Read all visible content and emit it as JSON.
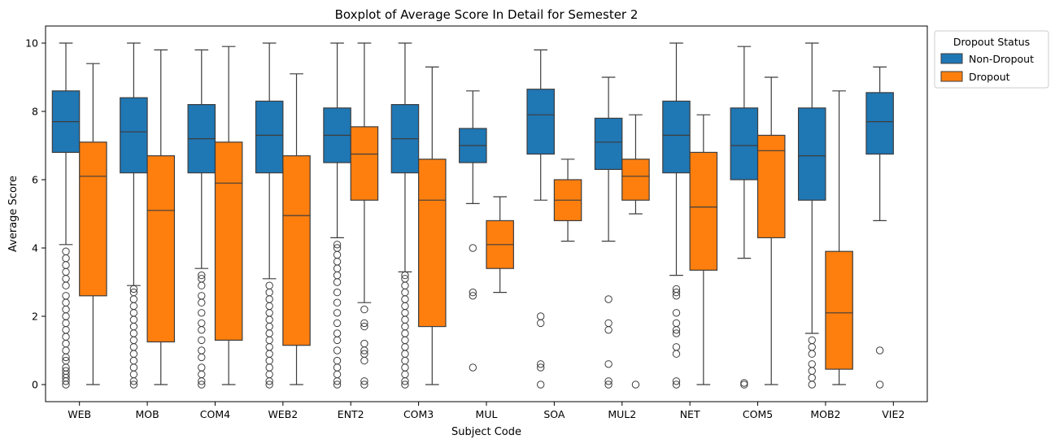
{
  "chart_data": {
    "type": "boxplot",
    "title": "Boxplot of Average Score In Detail for Semester 2",
    "xlabel": "Subject Code",
    "ylabel": "Average Score",
    "ylim": [
      -0.5,
      10.5
    ],
    "yticks": [
      0,
      2,
      4,
      6,
      8,
      10
    ],
    "grid": false,
    "legend": {
      "title": "Dropout Status",
      "placement": "upper-right-outside"
    },
    "categories": [
      "WEB",
      "MOB",
      "COM4",
      "WEB2",
      "ENT2",
      "COM3",
      "MUL",
      "SOA",
      "MUL2",
      "NET",
      "COM5",
      "MOB2",
      "VIE2"
    ],
    "series": [
      {
        "name": "Non-Dropout",
        "color": "#1f77b4",
        "boxes": [
          {
            "whislo": 4.1,
            "q1": 6.8,
            "med": 7.7,
            "q3": 8.6,
            "whishi": 10.0,
            "fliers": [
              0,
              0.1,
              0.2,
              0.3,
              0.4,
              0.5,
              0.7,
              0.8,
              1.0,
              1.2,
              1.4,
              1.6,
              1.8,
              2.0,
              2.2,
              2.4,
              2.6,
              2.9,
              3.1,
              3.3,
              3.5,
              3.7,
              3.9
            ]
          },
          {
            "whislo": 2.9,
            "q1": 6.2,
            "med": 7.4,
            "q3": 8.4,
            "whishi": 10.0,
            "fliers": [
              0,
              0.1,
              0.3,
              0.5,
              0.7,
              0.9,
              1.1,
              1.3,
              1.5,
              1.7,
              1.9,
              2.1,
              2.3,
              2.5,
              2.7,
              2.8
            ]
          },
          {
            "whislo": 3.4,
            "q1": 6.2,
            "med": 7.2,
            "q3": 8.2,
            "whishi": 9.8,
            "fliers": [
              0,
              0.1,
              0.3,
              0.5,
              0.8,
              1.0,
              1.3,
              1.6,
              1.8,
              2.1,
              2.4,
              2.6,
              2.9,
              3.1,
              3.2
            ]
          },
          {
            "whislo": 3.1,
            "q1": 6.2,
            "med": 7.3,
            "q3": 8.3,
            "whishi": 10.0,
            "fliers": [
              0,
              0.1,
              0.3,
              0.5,
              0.7,
              0.9,
              1.1,
              1.3,
              1.5,
              1.7,
              1.9,
              2.1,
              2.3,
              2.5,
              2.7,
              2.9
            ]
          },
          {
            "whislo": 4.3,
            "q1": 6.5,
            "med": 7.3,
            "q3": 8.1,
            "whishi": 10.0,
            "fliers": [
              0,
              0.1,
              0.3,
              0.5,
              0.7,
              1.0,
              1.3,
              1.5,
              1.8,
              2.1,
              2.4,
              2.7,
              3.0,
              3.2,
              3.4,
              3.6,
              3.8,
              4.0,
              4.1
            ]
          },
          {
            "whislo": 3.3,
            "q1": 6.2,
            "med": 7.2,
            "q3": 8.2,
            "whishi": 10.0,
            "fliers": [
              0,
              0.1,
              0.3,
              0.5,
              0.7,
              0.9,
              1.1,
              1.3,
              1.5,
              1.7,
              1.9,
              2.1,
              2.3,
              2.5,
              2.7,
              2.9,
              3.1,
              3.2
            ]
          },
          {
            "whislo": 5.3,
            "q1": 6.5,
            "med": 7.0,
            "q3": 7.5,
            "whishi": 8.6,
            "fliers": [
              0.5,
              2.6,
              2.7,
              4.0
            ]
          },
          {
            "whislo": 5.4,
            "q1": 6.75,
            "med": 7.9,
            "q3": 8.65,
            "whishi": 9.8,
            "fliers": [
              0,
              0.5,
              0.6,
              1.8,
              2.0
            ]
          },
          {
            "whislo": 4.2,
            "q1": 6.3,
            "med": 7.1,
            "q3": 7.8,
            "whishi": 9.0,
            "fliers": [
              0,
              0.1,
              0.6,
              1.6,
              1.8,
              2.5
            ]
          },
          {
            "whislo": 3.2,
            "q1": 6.2,
            "med": 7.3,
            "q3": 8.3,
            "whishi": 10.0,
            "fliers": [
              0,
              0.1,
              0.9,
              1.1,
              1.5,
              1.6,
              1.8,
              2.1,
              2.6,
              2.7,
              2.8
            ]
          },
          {
            "whislo": 3.7,
            "q1": 6.0,
            "med": 7.0,
            "q3": 8.1,
            "whishi": 9.9,
            "fliers": [
              0,
              0.05
            ]
          },
          {
            "whislo": 1.5,
            "q1": 5.4,
            "med": 6.7,
            "q3": 8.1,
            "whishi": 10.0,
            "fliers": [
              0,
              0.2,
              0.4,
              0.6,
              0.9,
              1.1,
              1.3
            ]
          },
          {
            "whislo": 4.8,
            "q1": 6.75,
            "med": 7.7,
            "q3": 8.55,
            "whishi": 9.3,
            "fliers": [
              0,
              1.0
            ]
          }
        ]
      },
      {
        "name": "Dropout",
        "color": "#ff7f0e",
        "boxes": [
          {
            "whislo": 0,
            "q1": 2.6,
            "med": 6.1,
            "q3": 7.1,
            "whishi": 9.4,
            "fliers": []
          },
          {
            "whislo": 0,
            "q1": 1.25,
            "med": 5.1,
            "q3": 6.7,
            "whishi": 9.8,
            "fliers": []
          },
          {
            "whislo": 0,
            "q1": 1.3,
            "med": 5.9,
            "q3": 7.1,
            "whishi": 9.9,
            "fliers": []
          },
          {
            "whislo": 0,
            "q1": 1.15,
            "med": 4.95,
            "q3": 6.7,
            "whishi": 9.1,
            "fliers": []
          },
          {
            "whislo": 2.4,
            "q1": 5.4,
            "med": 6.75,
            "q3": 7.55,
            "whishi": 10.0,
            "fliers": [
              0,
              0.1,
              0.7,
              0.9,
              1.0,
              1.2,
              1.7,
              1.8,
              2.2
            ]
          },
          {
            "whislo": 0,
            "q1": 1.7,
            "med": 5.4,
            "q3": 6.6,
            "whishi": 9.3,
            "fliers": []
          },
          {
            "whislo": 2.7,
            "q1": 3.4,
            "med": 4.1,
            "q3": 4.8,
            "whishi": 5.5,
            "fliers": []
          },
          {
            "whislo": 4.2,
            "q1": 4.8,
            "med": 5.4,
            "q3": 6.0,
            "whishi": 6.6,
            "fliers": []
          },
          {
            "whislo": 5.0,
            "q1": 5.4,
            "med": 6.1,
            "q3": 6.6,
            "whishi": 7.9,
            "fliers": [
              0
            ]
          },
          {
            "whislo": 0,
            "q1": 3.35,
            "med": 5.2,
            "q3": 6.8,
            "whishi": 7.9,
            "fliers": []
          },
          {
            "whislo": 0,
            "q1": 4.3,
            "med": 6.85,
            "q3": 7.3,
            "whishi": 9.0,
            "fliers": []
          },
          {
            "whislo": 0,
            "q1": 0.45,
            "med": 2.1,
            "q3": 3.9,
            "whishi": 8.6,
            "fliers": []
          },
          null
        ]
      }
    ]
  }
}
